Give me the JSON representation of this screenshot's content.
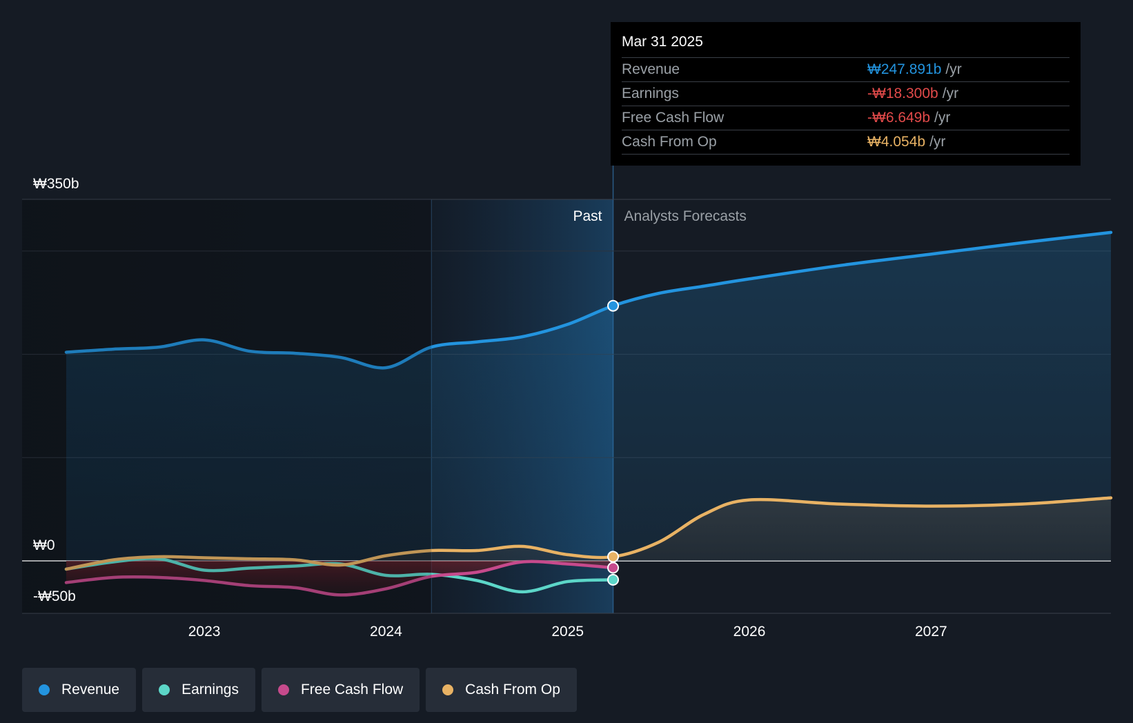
{
  "colors": {
    "revenue": "#2394df",
    "earnings": "#5cd6c8",
    "free_cash_flow": "#c64a8c",
    "cash_from_op": "#e8b264",
    "background": "#151b24",
    "negative": "#e24a4a"
  },
  "tooltip": {
    "date": "Mar 31 2025",
    "rows": [
      {
        "label": "Revenue",
        "value": "₩247.891b",
        "unit": "/yr",
        "color": "#2394df"
      },
      {
        "label": "Earnings",
        "value": "-₩18.300b",
        "unit": "/yr",
        "color": "#e24a4a"
      },
      {
        "label": "Free Cash Flow",
        "value": "-₩6.649b",
        "unit": "/yr",
        "color": "#e24a4a"
      },
      {
        "label": "Cash From Op",
        "value": "₩4.054b",
        "unit": "/yr",
        "color": "#e8b264"
      }
    ]
  },
  "legend": [
    {
      "label": "Revenue",
      "color": "#2394df"
    },
    {
      "label": "Earnings",
      "color": "#5cd6c8"
    },
    {
      "label": "Free Cash Flow",
      "color": "#c64a8c"
    },
    {
      "label": "Cash From Op",
      "color": "#e8b264"
    }
  ],
  "chart_data": {
    "type": "line",
    "title": "",
    "past_label": "Past",
    "forecast_label": "Analysts Forecasts",
    "y_tick_labels": [
      "₩350b",
      "₩0",
      "-₩50b"
    ],
    "y_tick_values": [
      350,
      0,
      -50
    ],
    "ylim": [
      -50,
      350
    ],
    "xlim": [
      2022.24,
      2027.99
    ],
    "x_ticks": [
      2023,
      2024,
      2025,
      2026,
      2027
    ],
    "x_tick_labels": [
      "2023",
      "2024",
      "2025",
      "2026",
      "2027"
    ],
    "gridlines": [
      100,
      200,
      300
    ],
    "past_band_start": 2024.25,
    "current_date": 2025.25,
    "series": [
      {
        "name": "Revenue",
        "key": "revenue",
        "x": [
          2022.24,
          2022.5,
          2022.75,
          2023.0,
          2023.25,
          2023.5,
          2023.75,
          2024.0,
          2024.25,
          2024.5,
          2024.75,
          2025.0,
          2025.25,
          2025.5,
          2025.75,
          2026.0,
          2026.5,
          2027.0,
          2027.5,
          2027.99
        ],
        "values": [
          202,
          205,
          207,
          214,
          203,
          201,
          197,
          187,
          207,
          212,
          217,
          229,
          247,
          259,
          266,
          273,
          286,
          297,
          308,
          318
        ]
      },
      {
        "name": "Earnings",
        "key": "earnings",
        "x": [
          2022.24,
          2022.5,
          2022.75,
          2023.0,
          2023.25,
          2023.5,
          2023.75,
          2024.0,
          2024.25,
          2024.5,
          2024.75,
          2025.0,
          2025.25
        ],
        "values": [
          -8,
          -1,
          2,
          -9,
          -7,
          -5,
          -3,
          -14,
          -13,
          -19,
          -30,
          -20,
          -18.3
        ]
      },
      {
        "name": "Free Cash Flow",
        "key": "free_cash_flow",
        "x": [
          2022.24,
          2022.5,
          2022.75,
          2023.0,
          2023.25,
          2023.5,
          2023.75,
          2024.0,
          2024.25,
          2024.5,
          2024.75,
          2025.0,
          2025.25
        ],
        "values": [
          -21,
          -16,
          -16,
          -19,
          -24,
          -26,
          -33,
          -27,
          -15,
          -11,
          -1,
          -3,
          -6.649
        ]
      },
      {
        "name": "Cash From Op",
        "key": "cash_from_op",
        "x": [
          2022.24,
          2022.5,
          2022.75,
          2023.0,
          2023.25,
          2023.5,
          2023.75,
          2024.0,
          2024.25,
          2024.5,
          2024.75,
          2025.0,
          2025.25,
          2025.5,
          2025.75,
          2026.0,
          2026.5,
          2027.0,
          2027.5,
          2027.99
        ],
        "values": [
          -8,
          1,
          4,
          3,
          2,
          1,
          -4,
          5,
          10,
          10,
          14,
          6,
          4.054,
          18,
          45,
          59,
          55,
          53,
          55,
          61
        ]
      }
    ]
  }
}
